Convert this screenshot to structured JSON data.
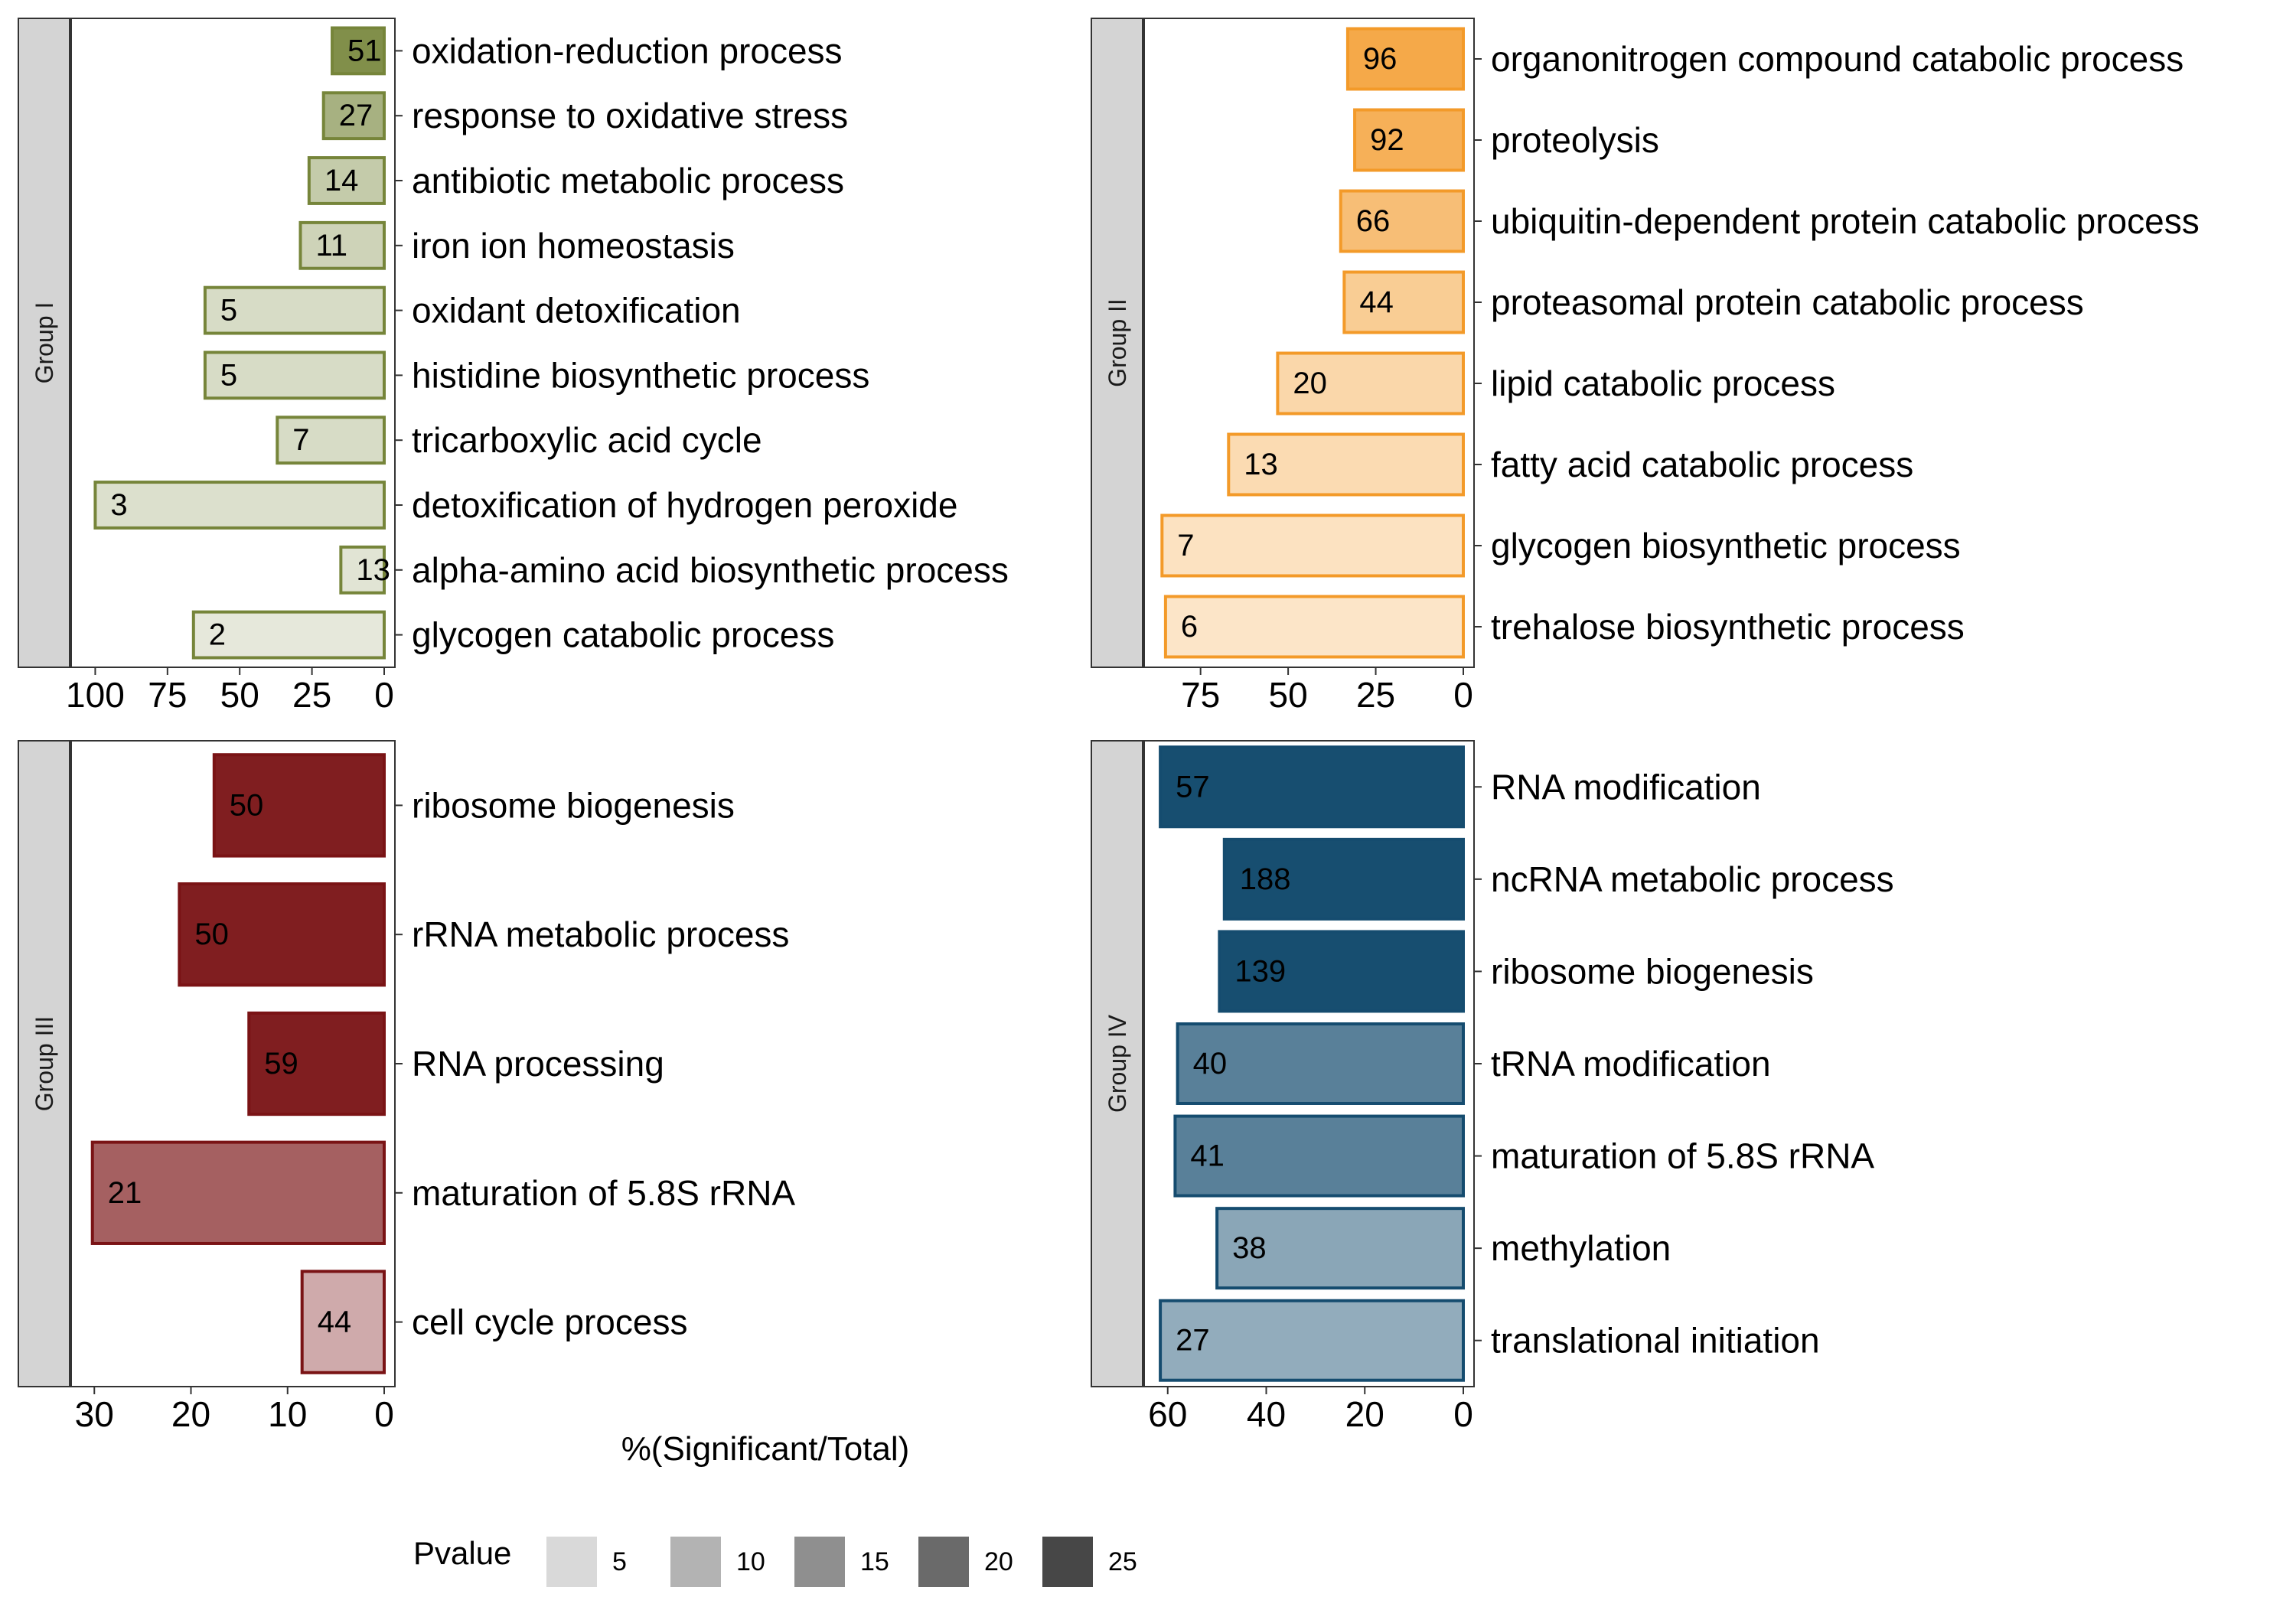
{
  "chart_data": {
    "type": "bar",
    "orientation": "horizontal",
    "x_reversed": true,
    "xlabel": "%(Significant/Total)",
    "legend": {
      "title": "Pvalue",
      "position": "bottom",
      "levels": [
        "5",
        "10",
        "15",
        "20",
        "25"
      ],
      "swatch_colors": [
        "#d9d9d9",
        "#b3b3b3",
        "#8f8f8f",
        "#6a6a6a",
        "#474747"
      ]
    },
    "panels": [
      {
        "strip": "Group I",
        "color": "#76853a",
        "xlim": [
          0,
          107
        ],
        "xticks": [
          0,
          25,
          50,
          75,
          100
        ],
        "bars": [
          {
            "term": "oxidation-reduction process",
            "value": 18,
            "count": "51",
            "pvalue": 24
          },
          {
            "term": "response to oxidative stress",
            "value": 21,
            "count": "27",
            "pvalue": 16
          },
          {
            "term": "antibiotic metabolic process",
            "value": 26,
            "count": "14",
            "pvalue": 10
          },
          {
            "term": "iron ion homeostasis",
            "value": 29,
            "count": "11",
            "pvalue": 8
          },
          {
            "term": "oxidant detoxification",
            "value": 62,
            "count": "5",
            "pvalue": 6
          },
          {
            "term": "histidine biosynthetic process",
            "value": 62,
            "count": "5",
            "pvalue": 6
          },
          {
            "term": "tricarboxylic acid cycle",
            "value": 37,
            "count": "7",
            "pvalue": 6
          },
          {
            "term": "detoxification of hydrogen peroxide",
            "value": 100,
            "count": "3",
            "pvalue": 5
          },
          {
            "term": "alpha-amino acid biosynthetic process",
            "value": 15,
            "count": "13",
            "pvalue": 4
          },
          {
            "term": "glycogen catabolic process",
            "value": 66,
            "count": "2",
            "pvalue": 3
          }
        ]
      },
      {
        "strip": "Group II",
        "color": "#f39a29",
        "xlim": [
          0,
          90
        ],
        "xticks": [
          0,
          25,
          50,
          75
        ],
        "bars": [
          {
            "term": "organonitrogen compound catabolic process",
            "value": 33,
            "count": "96",
            "pvalue": 22
          },
          {
            "term": "proteolysis",
            "value": 31,
            "count": "92",
            "pvalue": 20
          },
          {
            "term": "ubiquitin-dependent protein catabolic process",
            "value": 35,
            "count": "66",
            "pvalue": 16
          },
          {
            "term": "proteasomal protein catabolic process",
            "value": 34,
            "count": "44",
            "pvalue": 12
          },
          {
            "term": "lipid catabolic process",
            "value": 53,
            "count": "20",
            "pvalue": 9
          },
          {
            "term": "fatty acid catabolic process",
            "value": 67,
            "count": "13",
            "pvalue": 8
          },
          {
            "term": "glycogen biosynthetic process",
            "value": 86,
            "count": "7",
            "pvalue": 6
          },
          {
            "term": "trehalose biosynthetic process",
            "value": 85,
            "count": "6",
            "pvalue": 5
          }
        ]
      },
      {
        "strip": "Group III",
        "color": "#7a1315",
        "xlim": [
          0,
          32
        ],
        "xticks": [
          0,
          10,
          20,
          30
        ],
        "bars": [
          {
            "term": "ribosome biogenesis",
            "value": 17.6,
            "count": "50",
            "pvalue": 25
          },
          {
            "term": "rRNA metabolic process",
            "value": 21.2,
            "count": "50",
            "pvalue": 25
          },
          {
            "term": "RNA processing",
            "value": 14,
            "count": "59",
            "pvalue": 25
          },
          {
            "term": "maturation of 5.8S rRNA",
            "value": 30.2,
            "count": "21",
            "pvalue": 17
          },
          {
            "term": "cell cycle process",
            "value": 8.5,
            "count": "44",
            "pvalue": 8
          }
        ]
      },
      {
        "strip": "Group IV",
        "color": "#154c6f",
        "xlim": [
          0,
          64
        ],
        "xticks": [
          0,
          20,
          40,
          60
        ],
        "bars": [
          {
            "term": "RNA modification",
            "value": 61.5,
            "count": "57",
            "pvalue": 26
          },
          {
            "term": "ncRNA metabolic process",
            "value": 48.5,
            "count": "188",
            "pvalue": 26
          },
          {
            "term": "ribosome biogenesis",
            "value": 49.5,
            "count": "139",
            "pvalue": 26
          },
          {
            "term": "tRNA modification",
            "value": 58,
            "count": "40",
            "pvalue": 18
          },
          {
            "term": "maturation of 5.8S rRNA",
            "value": 58.5,
            "count": "41",
            "pvalue": 18
          },
          {
            "term": "methylation",
            "value": 50,
            "count": "38",
            "pvalue": 12
          },
          {
            "term": "translational initiation",
            "value": 61.5,
            "count": "27",
            "pvalue": 11
          }
        ]
      }
    ]
  }
}
